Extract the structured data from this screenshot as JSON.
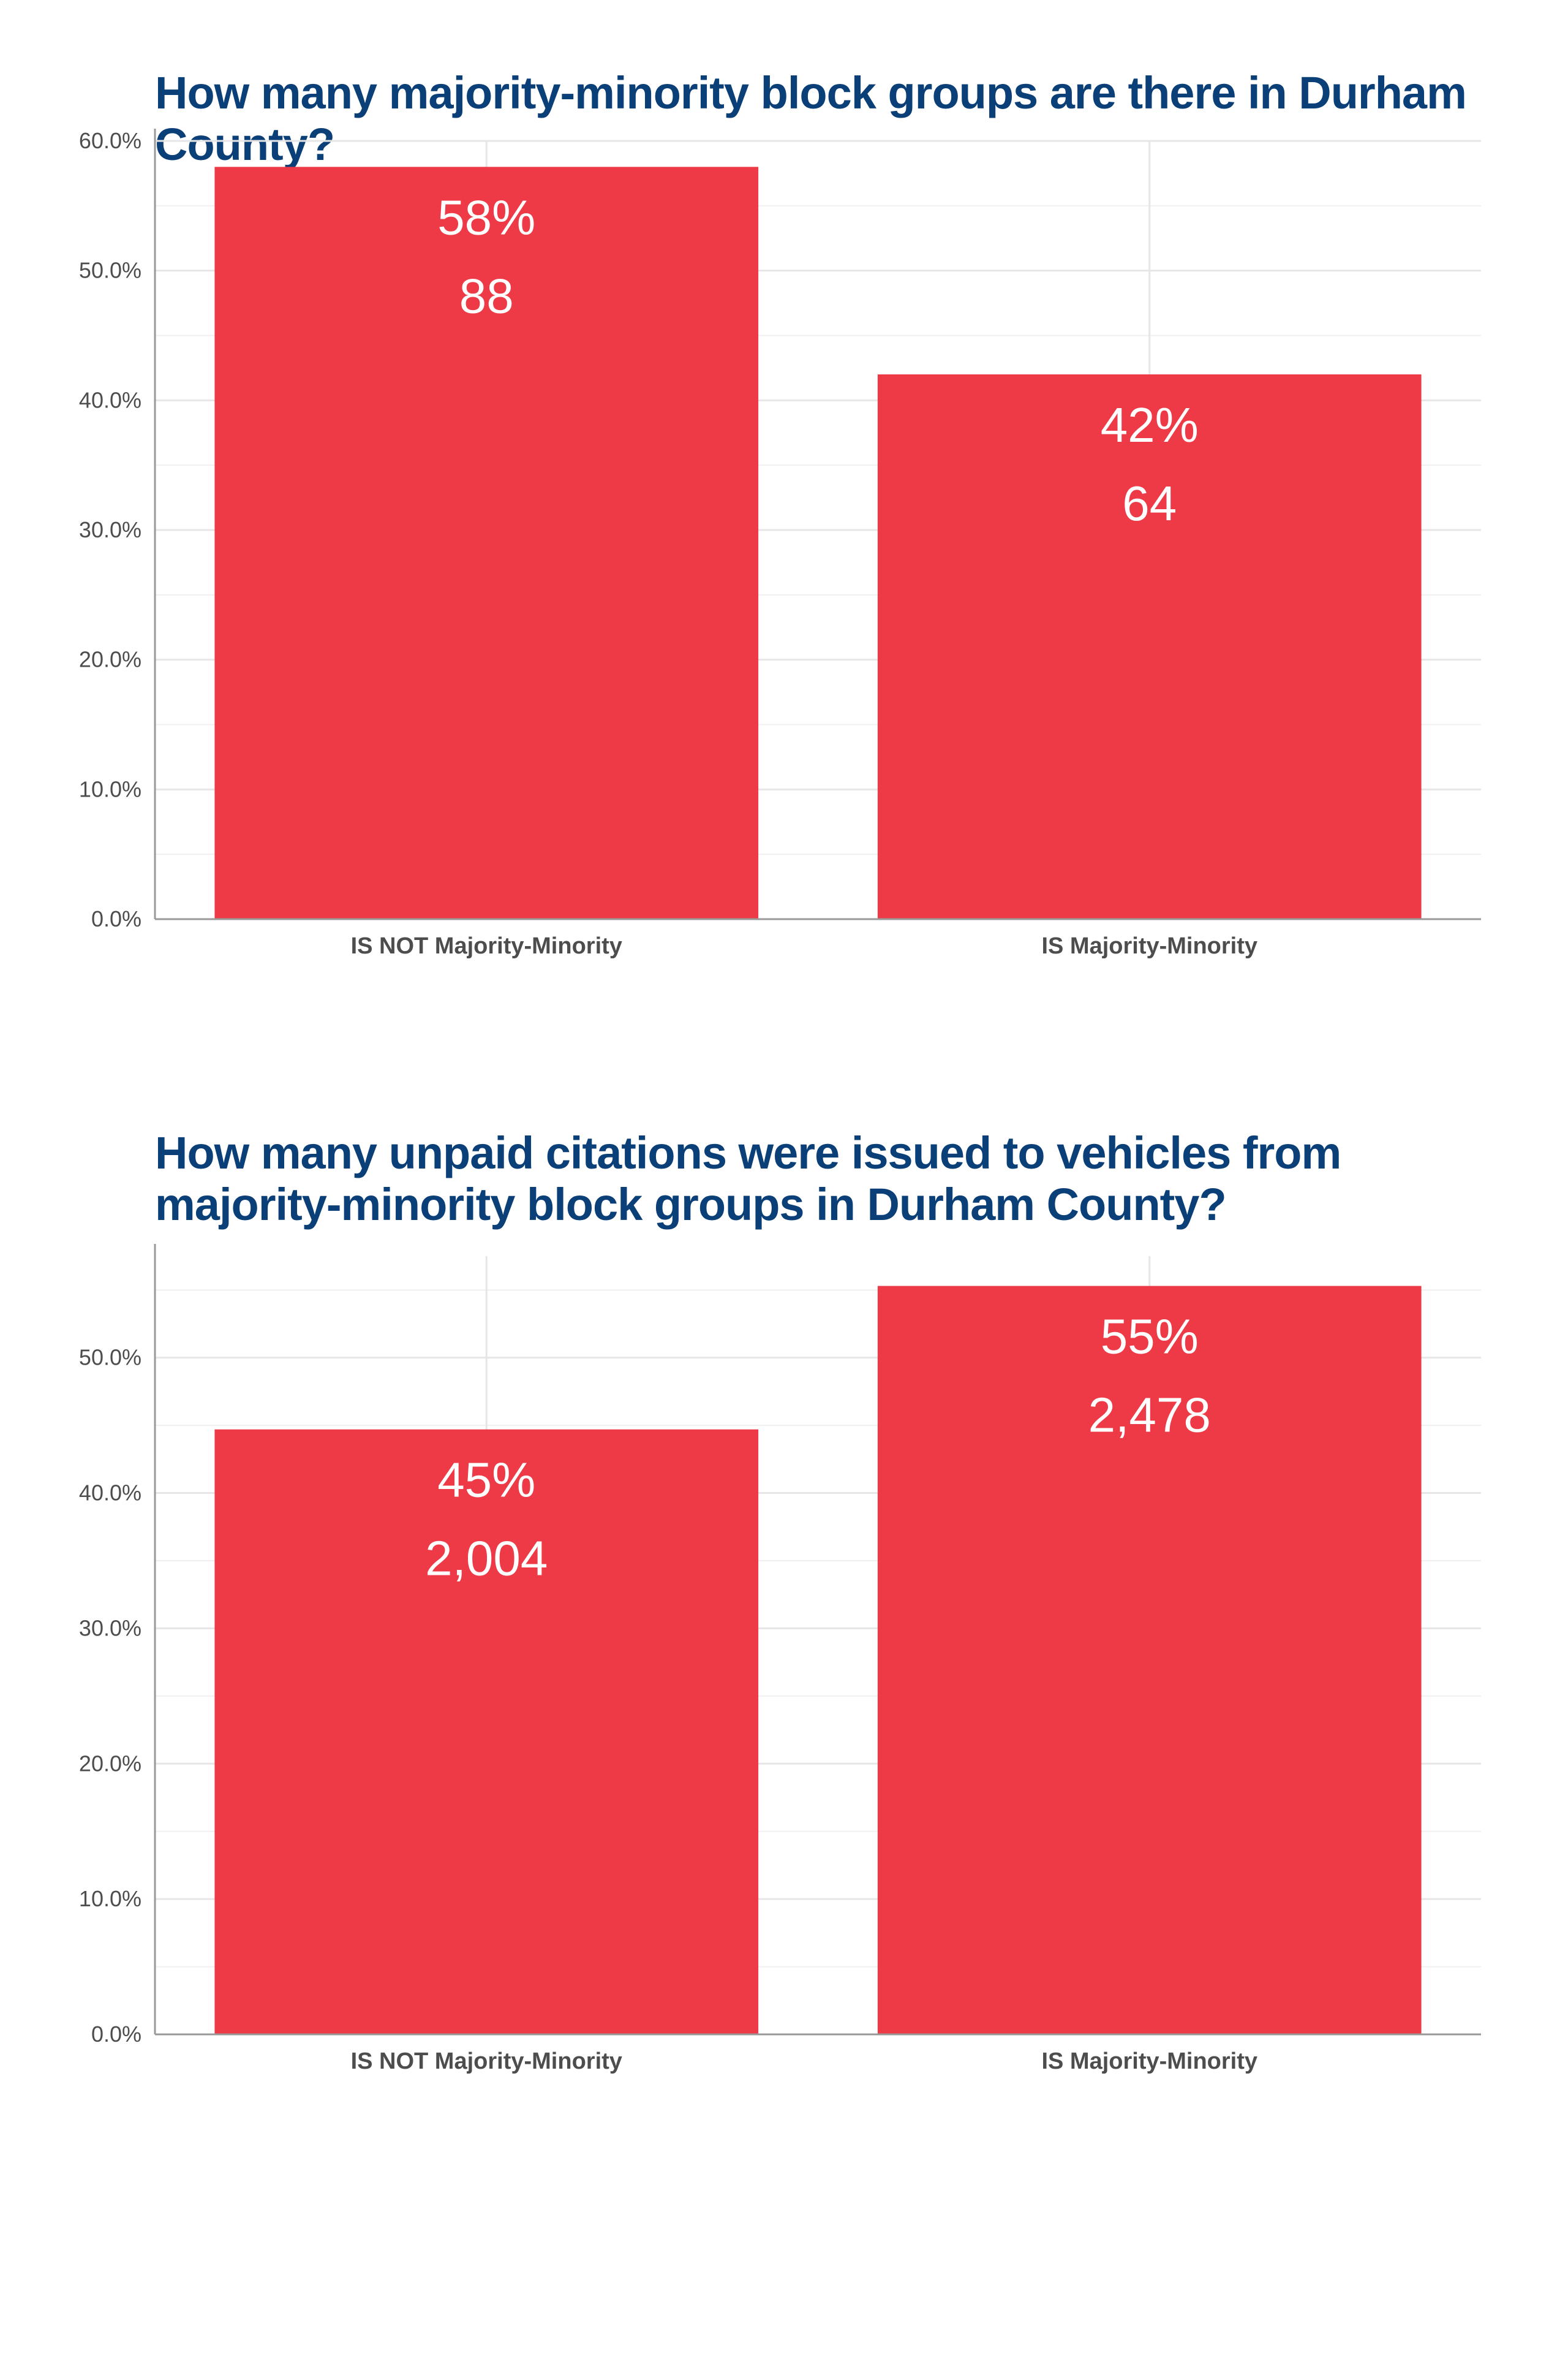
{
  "colors": {
    "bar": "#ee3a46",
    "title": "#0b3f78",
    "grid": "#e6e6e6",
    "axis": "#999999",
    "text": "#4d4d4d"
  },
  "chart_data": [
    {
      "type": "bar",
      "title": "How many majority-minority block groups are there in Durham County?",
      "xlabel": "",
      "ylabel": "",
      "categories": [
        "IS NOT Majority-Minority",
        "IS Majority-Minority"
      ],
      "values": [
        58,
        42
      ],
      "percent_labels": [
        "58%",
        "42%"
      ],
      "count_labels": [
        "88",
        "64"
      ],
      "ylim": [
        0,
        60
      ],
      "yticks": [
        0,
        10,
        20,
        30,
        40,
        50,
        60
      ],
      "ytick_labels": [
        "0.0%",
        "10.0%",
        "20.0%",
        "30.0%",
        "40.0%",
        "50.0%",
        "60.0%"
      ],
      "grid": true,
      "legend": "none"
    },
    {
      "type": "bar",
      "title": "How many unpaid citations were issued to vehicles from majority-minority block groups in Durham County?",
      "xlabel": "",
      "ylabel": "",
      "categories": [
        "IS NOT Majority-Minority",
        "IS Majority-Minority"
      ],
      "values": [
        44.7,
        55.3
      ],
      "percent_labels": [
        "45%",
        "55%"
      ],
      "count_labels": [
        "2,004",
        "2,478"
      ],
      "ylim": [
        0,
        57.5
      ],
      "yticks": [
        0,
        10,
        20,
        30,
        40,
        50
      ],
      "ytick_labels": [
        "0.0%",
        "10.0%",
        "20.0%",
        "30.0%",
        "40.0%",
        "50.0%"
      ],
      "grid": true,
      "legend": "none"
    }
  ]
}
